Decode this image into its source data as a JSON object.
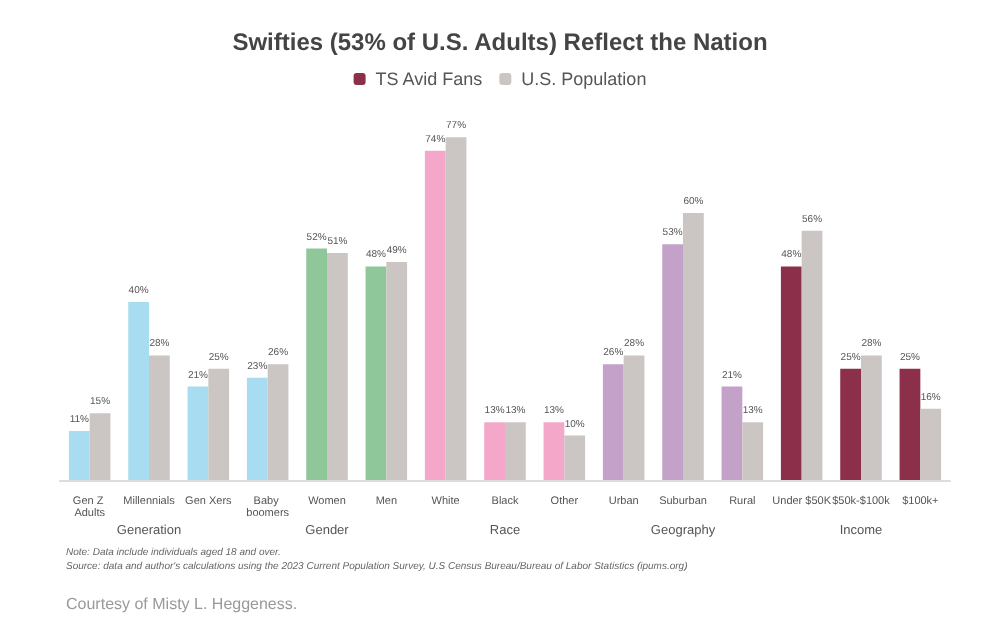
{
  "chart_data": {
    "type": "bar",
    "title": "Swifties (53% of U.S. Adults) Reflect the Nation",
    "legend": "top",
    "categories": [
      "Gen Z Adults",
      "Millennials",
      "Gen Xers",
      "Baby boomers",
      "Women",
      "Men",
      "White",
      "Black",
      "Other",
      "Urban",
      "Suburban",
      "Rural",
      "Under $50K",
      "$50k-$100k",
      "$100k+"
    ],
    "series": [
      {
        "name": "TS Avid Fans",
        "color": "#8b2f4a",
        "colors": [
          "#a8dcf0",
          "#a8dcf0",
          "#a8dcf0",
          "#a8dcf0",
          "#8fc79a",
          "#8fc79a",
          "#f4a7c8",
          "#f4a7c8",
          "#f4a7c8",
          "#c3a1c9",
          "#c3a1c9",
          "#c3a1c9",
          "#8b2f4a",
          "#8b2f4a",
          "#8b2f4a"
        ],
        "values": [
          11,
          40,
          21,
          23,
          52,
          48,
          74,
          13,
          13,
          26,
          53,
          21,
          48,
          25,
          25
        ],
        "value_labels": [
          "11%",
          "40%",
          "21%",
          "23%",
          "52%",
          "48%",
          "74%",
          "13%",
          "13%",
          "26%",
          "53%",
          "21%",
          "48%",
          "25%",
          "25%"
        ]
      },
      {
        "name": "U.S. Population",
        "color": "#cbc6c4",
        "values": [
          15,
          28,
          25,
          26,
          51,
          49,
          77,
          13,
          10,
          28,
          60,
          13,
          56,
          28,
          16
        ],
        "value_labels": [
          "15%",
          "28%",
          "25%",
          "26%",
          "51%",
          "49%",
          "77%",
          "13%",
          "10%",
          "28%",
          "60%",
          "13%",
          "56%",
          "28%",
          "16%"
        ]
      }
    ],
    "annotations": [
      "Generation",
      "Gender",
      "Race",
      "Geography",
      "Income",
      "Note: Data include individuals aged 18 and over.",
      "Source: data and author's calculations using the 2023 Current Population Survey, U.S Census Bureau/Bureau of Labor Statistics (ipums.org)",
      "Courtesy of Misty L. Heggeness."
    ]
  }
}
